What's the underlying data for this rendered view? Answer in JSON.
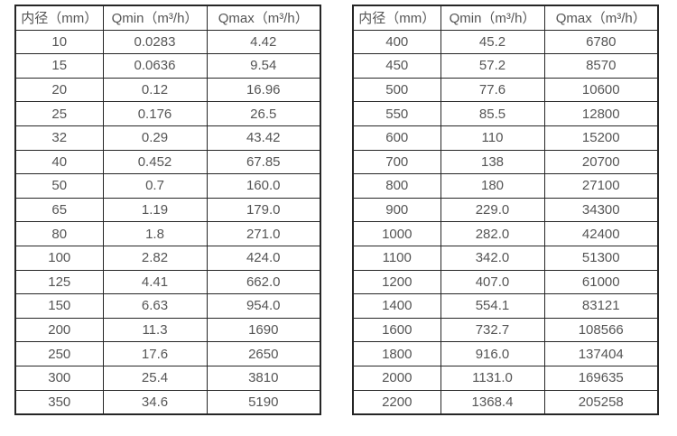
{
  "tables": [
    {
      "name": "flow-table-small-diameters",
      "headers": [
        "内径（mm）",
        "Qmin（m³/h）",
        "Qmax（m³/h）"
      ],
      "rows": [
        [
          "10",
          "0.0283",
          "4.42"
        ],
        [
          "15",
          "0.0636",
          "9.54"
        ],
        [
          "20",
          "0.12",
          "16.96"
        ],
        [
          "25",
          "0.176",
          "26.5"
        ],
        [
          "32",
          "0.29",
          "43.42"
        ],
        [
          "40",
          "0.452",
          "67.85"
        ],
        [
          "50",
          "0.7",
          "160.0"
        ],
        [
          "65",
          "1.19",
          "179.0"
        ],
        [
          "80",
          "1.8",
          "271.0"
        ],
        [
          "100",
          "2.82",
          "424.0"
        ],
        [
          "125",
          "4.41",
          "662.0"
        ],
        [
          "150",
          "6.63",
          "954.0"
        ],
        [
          "200",
          "11.3",
          "1690"
        ],
        [
          "250",
          "17.6",
          "2650"
        ],
        [
          "300",
          "25.4",
          "3810"
        ],
        [
          "350",
          "34.6",
          "5190"
        ]
      ]
    },
    {
      "name": "flow-table-large-diameters",
      "headers": [
        "内径（mm）",
        "Qmin（m³/h）",
        "Qmax（m³/h）"
      ],
      "rows": [
        [
          "400",
          "45.2",
          "6780"
        ],
        [
          "450",
          "57.2",
          "8570"
        ],
        [
          "500",
          "77.6",
          "10600"
        ],
        [
          "550",
          "85.5",
          "12800"
        ],
        [
          "600",
          "110",
          "15200"
        ],
        [
          "700",
          "138",
          "20700"
        ],
        [
          "800",
          "180",
          "27100"
        ],
        [
          "900",
          "229.0",
          "34300"
        ],
        [
          "1000",
          "282.0",
          "42400"
        ],
        [
          "1100",
          "342.0",
          "51300"
        ],
        [
          "1200",
          "407.0",
          "61000"
        ],
        [
          "1400",
          "554.1",
          "83121"
        ],
        [
          "1600",
          "732.7",
          "108566"
        ],
        [
          "1800",
          "916.0",
          "137404"
        ],
        [
          "2000",
          "1131.0",
          "169635"
        ],
        [
          "2200",
          "1368.4",
          "205258"
        ]
      ]
    }
  ],
  "colors": {
    "border": "#262626",
    "text": "#555555",
    "background": "#ffffff"
  }
}
